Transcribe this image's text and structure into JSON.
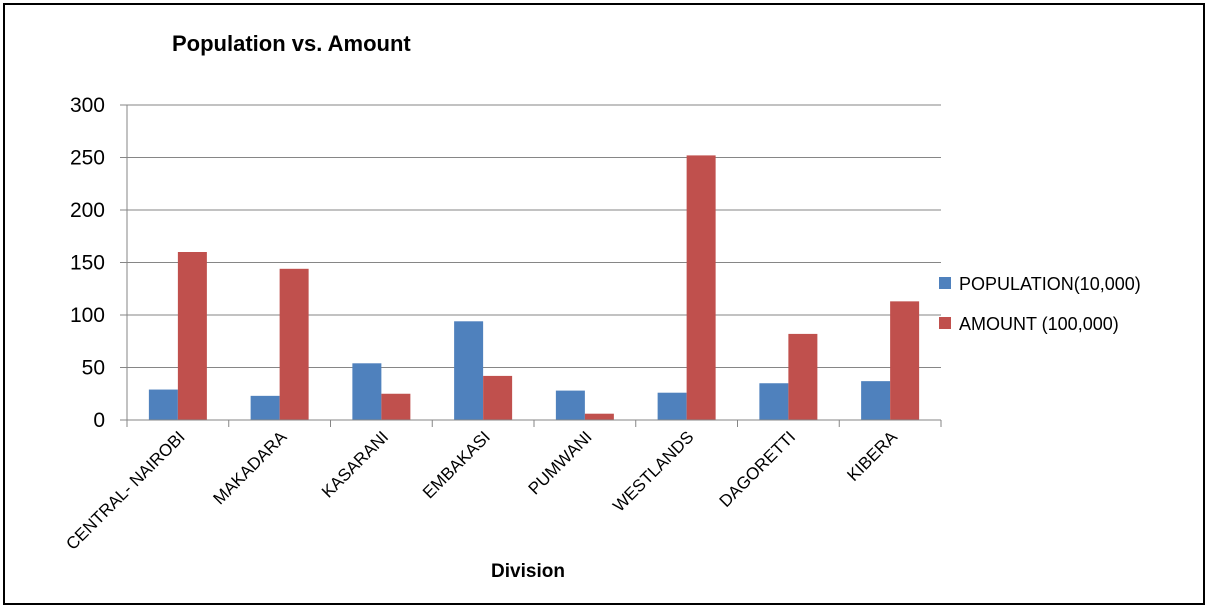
{
  "chart_data": {
    "type": "bar",
    "title": "Population vs. Amount",
    "xlabel": "Division",
    "ylabel": "",
    "ylim": [
      0,
      300
    ],
    "yticks": [
      0,
      50,
      100,
      150,
      200,
      250,
      300
    ],
    "grid": true,
    "legend_position": "right",
    "categories": [
      "CENTRAL- NAIROBI",
      "MAKADARA",
      "KASARANI",
      "EMBAKASI",
      "PUMWANI",
      "WESTLANDS",
      "DAGORETTI",
      "KIBERA"
    ],
    "series": [
      {
        "name": "POPULATION(10,000)",
        "color": "#4F81BD",
        "values": [
          29,
          23,
          54,
          94,
          28,
          26,
          35,
          37
        ]
      },
      {
        "name": "AMOUNT (100,000)",
        "color": "#C0504D",
        "values": [
          160,
          144,
          25,
          42,
          6,
          252,
          82,
          113
        ]
      }
    ]
  }
}
